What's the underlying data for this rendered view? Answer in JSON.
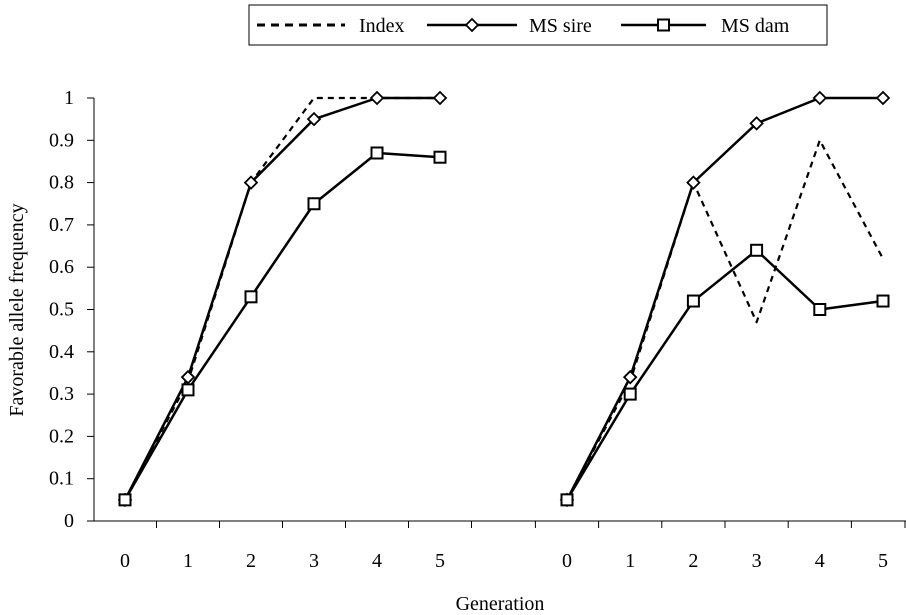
{
  "chart_data": {
    "type": "line",
    "xlabel": "Generation",
    "ylabel": "Favorable allele frequency",
    "ylim": [
      0,
      1
    ],
    "yticks": [
      0,
      0.1,
      0.2,
      0.3,
      0.4,
      0.5,
      0.6,
      0.7,
      0.8,
      0.9,
      1
    ],
    "ytick_labels": [
      "0",
      "0.1",
      "0.2",
      "0.3",
      "0.4",
      "0.5",
      "0.6",
      "0.7",
      "0.8",
      "0.9",
      "1"
    ],
    "legend_position": "top-center",
    "grid": false,
    "series_styles": [
      {
        "name": "Index",
        "dash": "dashed",
        "marker": "none"
      },
      {
        "name": "MS sire",
        "dash": "solid",
        "marker": "diamond"
      },
      {
        "name": "MS dam",
        "dash": "solid",
        "marker": "square"
      }
    ],
    "panels": [
      {
        "categories": [
          "0",
          "1",
          "2",
          "3",
          "4",
          "5"
        ],
        "series": [
          {
            "name": "Index",
            "values": [
              0.05,
              0.33,
              0.8,
              1.0,
              1.0,
              1.0
            ]
          },
          {
            "name": "MS sire",
            "values": [
              0.05,
              0.34,
              0.8,
              0.95,
              1.0,
              1.0
            ]
          },
          {
            "name": "MS dam",
            "values": [
              0.05,
              0.31,
              0.53,
              0.75,
              0.87,
              0.86
            ]
          }
        ]
      },
      {
        "categories": [
          "0",
          "1",
          "2",
          "3",
          "4",
          "5"
        ],
        "series": [
          {
            "name": "Index",
            "values": [
              0.05,
              0.33,
              0.8,
              0.47,
              0.9,
              0.62
            ]
          },
          {
            "name": "MS sire",
            "values": [
              0.05,
              0.34,
              0.8,
              0.94,
              1.0,
              1.0
            ]
          },
          {
            "name": "MS dam",
            "values": [
              0.05,
              0.3,
              0.52,
              0.64,
              0.5,
              0.52
            ]
          }
        ]
      }
    ]
  }
}
